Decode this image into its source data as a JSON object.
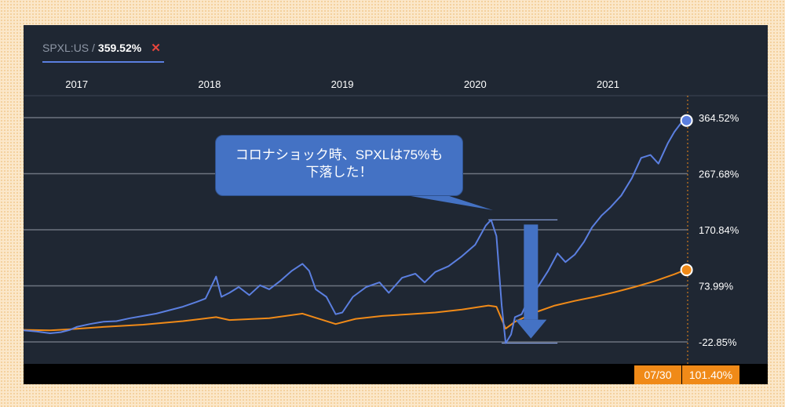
{
  "legend": {
    "ticker": "SPXL:US /",
    "value": "359.52%",
    "close_symbol": "✕"
  },
  "annotation": {
    "line1": "コロナショック時、SPXLは75%も",
    "line2": "下落した！"
  },
  "crosshair": {
    "date": "07/30",
    "value": "101.40%"
  },
  "colors": {
    "spxl": "#5b7fe0",
    "benchmark": "#f08a18",
    "background": "#1f2733",
    "callout": "#4472c4"
  },
  "chart_data": {
    "type": "line",
    "x_labels": [
      "2017",
      "2018",
      "2019",
      "2020",
      "2021"
    ],
    "y_ticks": [
      "364.52%",
      "267.68%",
      "170.84%",
      "73.99%",
      "-22.85%"
    ],
    "y_tick_values": [
      364.52,
      267.68,
      170.84,
      73.99,
      -22.85
    ],
    "xlim": [
      2016.6,
      2021.6
    ],
    "ylim": [
      -22.85,
      364.52
    ],
    "series": [
      {
        "name": "SPXL:US",
        "color": "#5b7fe0",
        "end_value": 359.52,
        "points": [
          [
            2016.6,
            -3
          ],
          [
            2016.7,
            -5
          ],
          [
            2016.8,
            -8
          ],
          [
            2016.88,
            -6
          ],
          [
            2016.95,
            -2
          ],
          [
            2017.0,
            3
          ],
          [
            2017.1,
            8
          ],
          [
            2017.2,
            12
          ],
          [
            2017.3,
            13
          ],
          [
            2017.4,
            18
          ],
          [
            2017.5,
            22
          ],
          [
            2017.6,
            26
          ],
          [
            2017.7,
            32
          ],
          [
            2017.8,
            38
          ],
          [
            2017.9,
            46
          ],
          [
            2017.97,
            52
          ],
          [
            2018.05,
            90
          ],
          [
            2018.09,
            55
          ],
          [
            2018.15,
            62
          ],
          [
            2018.22,
            72
          ],
          [
            2018.3,
            58
          ],
          [
            2018.38,
            75
          ],
          [
            2018.45,
            68
          ],
          [
            2018.53,
            82
          ],
          [
            2018.62,
            100
          ],
          [
            2018.7,
            112
          ],
          [
            2018.75,
            100
          ],
          [
            2018.8,
            68
          ],
          [
            2018.88,
            55
          ],
          [
            2018.95,
            25
          ],
          [
            2019.0,
            28
          ],
          [
            2019.08,
            55
          ],
          [
            2019.18,
            72
          ],
          [
            2019.28,
            80
          ],
          [
            2019.35,
            62
          ],
          [
            2019.45,
            88
          ],
          [
            2019.55,
            95
          ],
          [
            2019.62,
            80
          ],
          [
            2019.7,
            98
          ],
          [
            2019.8,
            108
          ],
          [
            2019.9,
            125
          ],
          [
            2020.0,
            145
          ],
          [
            2020.08,
            178
          ],
          [
            2020.12,
            188
          ],
          [
            2020.16,
            160
          ],
          [
            2020.2,
            40
          ],
          [
            2020.23,
            -25
          ],
          [
            2020.27,
            -10
          ],
          [
            2020.3,
            20
          ],
          [
            2020.35,
            25
          ],
          [
            2020.4,
            50
          ],
          [
            2020.48,
            75
          ],
          [
            2020.55,
            100
          ],
          [
            2020.62,
            130
          ],
          [
            2020.68,
            115
          ],
          [
            2020.75,
            128
          ],
          [
            2020.82,
            150
          ],
          [
            2020.88,
            175
          ],
          [
            2020.95,
            195
          ],
          [
            2021.02,
            210
          ],
          [
            2021.1,
            230
          ],
          [
            2021.18,
            260
          ],
          [
            2021.25,
            295
          ],
          [
            2021.32,
            300
          ],
          [
            2021.38,
            285
          ],
          [
            2021.45,
            320
          ],
          [
            2021.5,
            340
          ],
          [
            2021.55,
            355
          ],
          [
            2021.58,
            359.52
          ]
        ]
      },
      {
        "name": "",
        "color": "#f08a18",
        "end_value": 101.4,
        "points": [
          [
            2016.6,
            -2
          ],
          [
            2016.8,
            -3
          ],
          [
            2016.95,
            -1
          ],
          [
            2017.2,
            3
          ],
          [
            2017.5,
            7
          ],
          [
            2017.8,
            13
          ],
          [
            2018.05,
            20
          ],
          [
            2018.15,
            15
          ],
          [
            2018.45,
            18
          ],
          [
            2018.7,
            26
          ],
          [
            2018.95,
            8
          ],
          [
            2019.1,
            17
          ],
          [
            2019.3,
            22
          ],
          [
            2019.5,
            25
          ],
          [
            2019.7,
            28
          ],
          [
            2019.9,
            33
          ],
          [
            2020.1,
            40
          ],
          [
            2020.16,
            38
          ],
          [
            2020.23,
            0
          ],
          [
            2020.3,
            12
          ],
          [
            2020.45,
            28
          ],
          [
            2020.6,
            40
          ],
          [
            2020.75,
            48
          ],
          [
            2020.9,
            55
          ],
          [
            2021.05,
            63
          ],
          [
            2021.2,
            72
          ],
          [
            2021.35,
            82
          ],
          [
            2021.5,
            94
          ],
          [
            2021.58,
            101.4
          ]
        ]
      }
    ],
    "grid": true
  }
}
